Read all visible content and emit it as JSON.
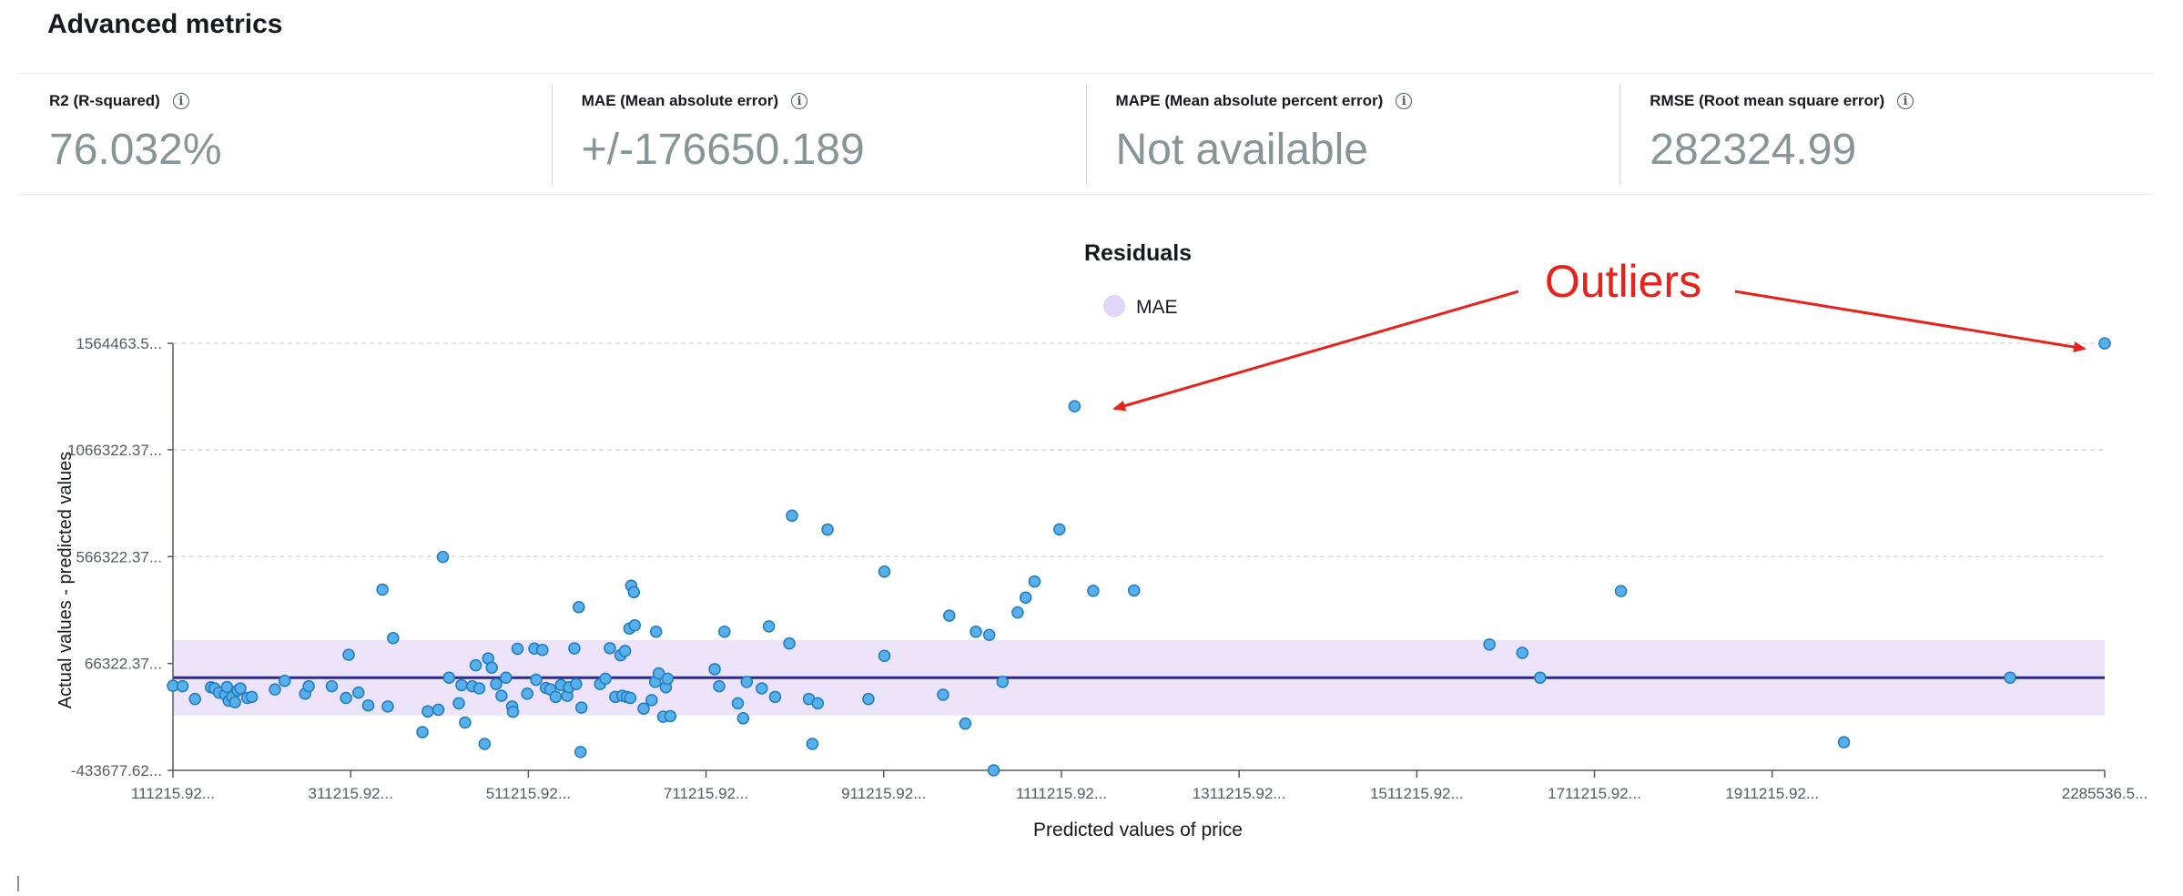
{
  "section_title": "Advanced metrics",
  "metrics": [
    {
      "label": "R2 (R-squared)",
      "value": "76.032%"
    },
    {
      "label": "MAE (Mean absolute error)",
      "value": "+/-176650.189"
    },
    {
      "label": "MAPE (Mean absolute percent error)",
      "value": "Not available"
    },
    {
      "label": "RMSE (Root mean square error)",
      "value": "282324.99"
    }
  ],
  "info_icon": "info-icon",
  "annotation": {
    "text": "Outliers",
    "color": "#e8221b"
  },
  "colors": {
    "point_fill": "#58b0ea",
    "point_stroke": "#1f7bc1",
    "mae_line": "#2a2a8f",
    "mae_band": "#ede3fb",
    "legend_swatch": "#e3d4fa"
  },
  "chart_data": {
    "type": "scatter",
    "title": "Residuals",
    "xlabel": "Predicted values of price",
    "ylabel": "Actual values - predicted values",
    "legend": [
      {
        "name": "MAE",
        "position": "top-center"
      }
    ],
    "xlim": [
      111215.92,
      2285536.5
    ],
    "ylim": [
      -433677.62,
      1564463.5
    ],
    "x_tick_labels": [
      "111215.92...",
      "311215.92...",
      "511215.92...",
      "711215.92...",
      "911215.92...",
      "1111215.92...",
      "1311215.92...",
      "1511215.92...",
      "1711215.92...",
      "1911215.92...",
      "2285536.5..."
    ],
    "x_tick_values": [
      111215.92,
      311215.92,
      511215.92,
      711215.92,
      911215.92,
      1111215.92,
      1311215.92,
      1511215.92,
      1711215.92,
      1911215.92,
      2285536.5
    ],
    "y_tick_labels": [
      "1564463.5...",
      "1066322.37...",
      "566322.37...",
      "66322.37...",
      "-433677.62..."
    ],
    "y_tick_values": [
      1564463.5,
      1066322.37,
      566322.37,
      66322.37,
      -433677.62
    ],
    "mae_line_y": 0,
    "mae_band": [
      -176650.189,
      176650.189
    ],
    "grid": "horizontal dashed",
    "points": [
      {
        "x": 111216,
        "y": -38000
      },
      {
        "x": 122000,
        "y": -40000
      },
      {
        "x": 136000,
        "y": -100000
      },
      {
        "x": 154000,
        "y": -45000
      },
      {
        "x": 158000,
        "y": -50000
      },
      {
        "x": 163000,
        "y": -70000
      },
      {
        "x": 170000,
        "y": -80000
      },
      {
        "x": 172000,
        "y": -44000
      },
      {
        "x": 174000,
        "y": -108000
      },
      {
        "x": 178000,
        "y": -90000
      },
      {
        "x": 181000,
        "y": -115000
      },
      {
        "x": 184000,
        "y": -60000
      },
      {
        "x": 187000,
        "y": -50000
      },
      {
        "x": 195000,
        "y": -95000
      },
      {
        "x": 200000,
        "y": -90000
      },
      {
        "x": 226000,
        "y": -55000
      },
      {
        "x": 237000,
        "y": -15000
      },
      {
        "x": 260000,
        "y": -75000
      },
      {
        "x": 264000,
        "y": -40000
      },
      {
        "x": 290000,
        "y": -40000
      },
      {
        "x": 306000,
        "y": -95000
      },
      {
        "x": 309000,
        "y": 107000
      },
      {
        "x": 320000,
        "y": -70000
      },
      {
        "x": 331000,
        "y": -130000
      },
      {
        "x": 347000,
        "y": 412000
      },
      {
        "x": 353000,
        "y": -135000
      },
      {
        "x": 359000,
        "y": 185000
      },
      {
        "x": 392000,
        "y": -255000
      },
      {
        "x": 398000,
        "y": -158000
      },
      {
        "x": 410000,
        "y": -150000
      },
      {
        "x": 415000,
        "y": 565000
      },
      {
        "x": 422000,
        "y": 0
      },
      {
        "x": 433000,
        "y": -120000
      },
      {
        "x": 436000,
        "y": -35000
      },
      {
        "x": 440000,
        "y": -210000
      },
      {
        "x": 448000,
        "y": -40000
      },
      {
        "x": 452000,
        "y": 58000
      },
      {
        "x": 456000,
        "y": -50000
      },
      {
        "x": 462000,
        "y": -310000
      },
      {
        "x": 466000,
        "y": 90000
      },
      {
        "x": 470000,
        "y": 47000
      },
      {
        "x": 475000,
        "y": -30000
      },
      {
        "x": 481000,
        "y": -85000
      },
      {
        "x": 486000,
        "y": 0
      },
      {
        "x": 493000,
        "y": -135000
      },
      {
        "x": 494000,
        "y": -160000
      },
      {
        "x": 499000,
        "y": 135000
      },
      {
        "x": 510000,
        "y": -75000
      },
      {
        "x": 518000,
        "y": 136000
      },
      {
        "x": 520000,
        "y": -10000
      },
      {
        "x": 527000,
        "y": 130000
      },
      {
        "x": 531000,
        "y": -48000
      },
      {
        "x": 536000,
        "y": -55000
      },
      {
        "x": 542000,
        "y": -90000
      },
      {
        "x": 548000,
        "y": -35000
      },
      {
        "x": 555000,
        "y": -85000
      },
      {
        "x": 557000,
        "y": -45000
      },
      {
        "x": 563000,
        "y": 137000
      },
      {
        "x": 565000,
        "y": -30000
      },
      {
        "x": 568000,
        "y": 330000
      },
      {
        "x": 570000,
        "y": -348000
      },
      {
        "x": 571000,
        "y": -140000
      },
      {
        "x": 592000,
        "y": -30000
      },
      {
        "x": 598000,
        "y": -5000
      },
      {
        "x": 603000,
        "y": 138000
      },
      {
        "x": 609000,
        "y": -90000
      },
      {
        "x": 615000,
        "y": 105000
      },
      {
        "x": 617000,
        "y": -85000
      },
      {
        "x": 620000,
        "y": 125000
      },
      {
        "x": 622000,
        "y": -90000
      },
      {
        "x": 625000,
        "y": 230000
      },
      {
        "x": 626000,
        "y": -95000
      },
      {
        "x": 627000,
        "y": 430000
      },
      {
        "x": 630000,
        "y": 400000
      },
      {
        "x": 631000,
        "y": 245000
      },
      {
        "x": 641000,
        "y": -145000
      },
      {
        "x": 650000,
        "y": -105000
      },
      {
        "x": 654000,
        "y": -20000
      },
      {
        "x": 655000,
        "y": 215000
      },
      {
        "x": 658000,
        "y": 20000
      },
      {
        "x": 663000,
        "y": -183000
      },
      {
        "x": 666000,
        "y": -45000
      },
      {
        "x": 668000,
        "y": -5000
      },
      {
        "x": 671000,
        "y": -180000
      },
      {
        "x": 721000,
        "y": 40000
      },
      {
        "x": 726000,
        "y": -40000
      },
      {
        "x": 732000,
        "y": 215000
      },
      {
        "x": 747000,
        "y": -120000
      },
      {
        "x": 753000,
        "y": -190000
      },
      {
        "x": 757000,
        "y": -20000
      },
      {
        "x": 774000,
        "y": -50000
      },
      {
        "x": 782000,
        "y": 240000
      },
      {
        "x": 789000,
        "y": -90000
      },
      {
        "x": 805000,
        "y": 160000
      },
      {
        "x": 808000,
        "y": 758000
      },
      {
        "x": 827000,
        "y": -100000
      },
      {
        "x": 831000,
        "y": -310000
      },
      {
        "x": 837000,
        "y": -120000
      },
      {
        "x": 848000,
        "y": 693000
      },
      {
        "x": 894000,
        "y": -100000
      },
      {
        "x": 912000,
        "y": 496000
      },
      {
        "x": 912000,
        "y": 102000
      },
      {
        "x": 978000,
        "y": -80000
      },
      {
        "x": 985000,
        "y": 290000
      },
      {
        "x": 1003000,
        "y": -215000
      },
      {
        "x": 1015000,
        "y": 215000
      },
      {
        "x": 1030000,
        "y": 200000
      },
      {
        "x": 1035000,
        "y": -433600
      },
      {
        "x": 1045000,
        "y": -20000
      },
      {
        "x": 1062000,
        "y": 305000
      },
      {
        "x": 1071000,
        "y": 375000
      },
      {
        "x": 1081000,
        "y": 450000
      },
      {
        "x": 1109000,
        "y": 694000
      },
      {
        "x": 1126000,
        "y": 1270000
      },
      {
        "x": 1147000,
        "y": 406000
      },
      {
        "x": 1193000,
        "y": 408000
      },
      {
        "x": 1593000,
        "y": 155000
      },
      {
        "x": 1630000,
        "y": 116000
      },
      {
        "x": 1650000,
        "y": 0
      },
      {
        "x": 1741000,
        "y": 405000
      },
      {
        "x": 1992000,
        "y": -302000
      },
      {
        "x": 2179000,
        "y": 0
      },
      {
        "x": 2285536,
        "y": 1564000
      }
    ]
  }
}
